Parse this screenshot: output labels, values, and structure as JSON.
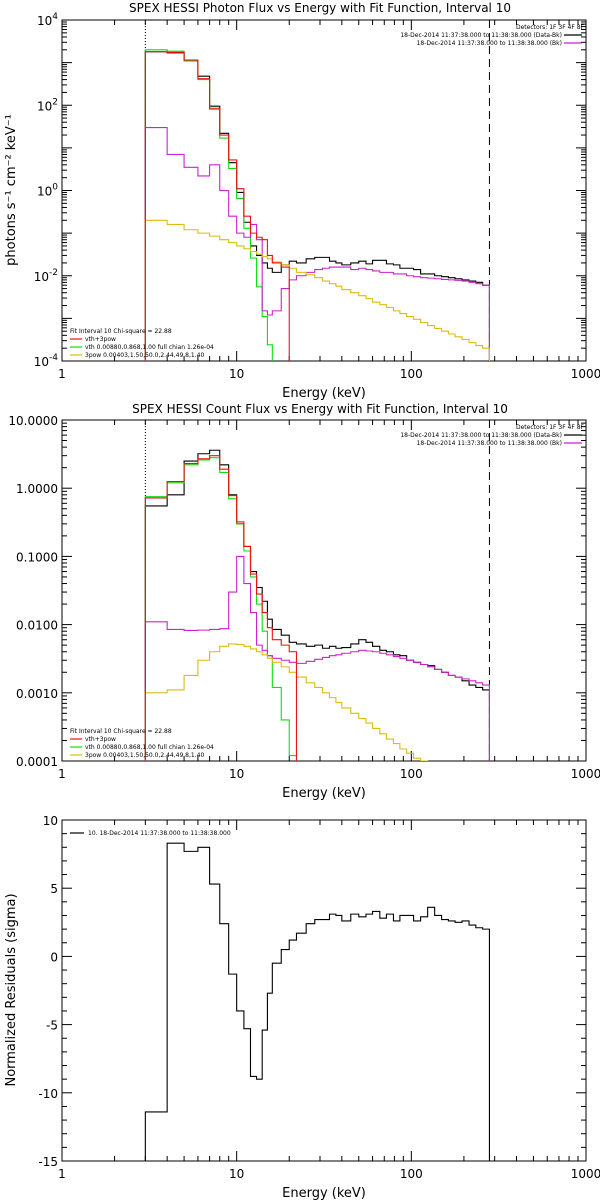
{
  "colors": {
    "black": "#000000",
    "green": "#11dd11",
    "magenta": "#cc22cc",
    "yellow": "#ddbb11",
    "red": "#ee1111",
    "orange": "#ee8800"
  },
  "chart_data": [
    {
      "type": "line",
      "step": true,
      "title": "SPEX HESSI Photon Flux vs Energy with Fit Function, Interval 10",
      "xlabel": "Energy (keV)",
      "ylabel": "photons s⁻¹ cm⁻² keV⁻¹",
      "xscale": "log",
      "yscale": "log",
      "xlim": [
        1,
        1000
      ],
      "ylim": [
        0.0001,
        10000
      ],
      "xticks": [
        {
          "v": 1,
          "label": "1"
        },
        {
          "v": 10,
          "label": "10"
        },
        {
          "v": 100,
          "label": "100"
        },
        {
          "v": 1000,
          "label": "1000"
        }
      ],
      "yticks": [
        {
          "v": 0.0001,
          "b": "10",
          "e": "-4"
        },
        {
          "v": 0.01,
          "b": "10",
          "e": "-2"
        },
        {
          "v": 1,
          "b": "10",
          "e": "0"
        },
        {
          "v": 100,
          "b": "10",
          "e": "2"
        },
        {
          "v": 10000,
          "b": "10",
          "e": "4"
        }
      ],
      "vlines": [
        {
          "x": 3,
          "style": "dotted"
        },
        {
          "x": 280,
          "style": "dashed"
        }
      ],
      "legend_top": {
        "header": "Detectors: 1F 3F 4F 8F",
        "entries": [
          {
            "label": "18-Dec-2014 11:37:38.000 to 11:38:38.000 (Data-Bk)",
            "color": "black"
          },
          {
            "label": "18-Dec-2014 11:37:38.000 to 11:38:38.000 (Bk)",
            "color": "magenta"
          }
        ]
      },
      "legend_bottom": {
        "header": "Fit Interval 10   Chi-square = 22.88",
        "entries": [
          {
            "label": "vth+3pow",
            "color": "red"
          },
          {
            "label": "vth 0.00880,0.868,1.00   full chian 1.26e-04",
            "color": "green"
          },
          {
            "label": "3pow 0.00403,1.50,50.0,2.44,49.8,1.40",
            "color": "yellow"
          }
        ]
      },
      "edges": [
        3.0,
        4.0,
        5.0,
        6.0,
        7.0,
        8.0,
        9.0,
        10.0,
        11.0,
        12.0,
        13.0,
        14.0,
        15.0,
        16.0,
        18.0,
        20.0,
        22.0,
        25.0,
        28.0,
        31.0,
        34.0,
        37.0,
        40.0,
        45.0,
        50.0,
        55.0,
        60.0,
        66.0,
        72.0,
        79.0,
        86.0,
        94.0,
        103.0,
        113.0,
        124.0,
        136.0,
        149.0,
        163.0,
        178.0,
        195.0,
        214.0,
        234.0,
        256.0,
        280.0
      ],
      "series": [
        {
          "color": "black",
          "values": [
            1800,
            1700,
            1100,
            480,
            95,
            22,
            4.5,
            0.9,
            0.18,
            0.05,
            0.03,
            0.02,
            0.015,
            0.012,
            0.018,
            0.022,
            0.02,
            0.025,
            0.027,
            0.027,
            0.022,
            0.02,
            0.018,
            0.02,
            0.022,
            0.019,
            0.023,
            0.023,
            0.019,
            0.018,
            0.015,
            0.015,
            0.014,
            0.011,
            0.011,
            0.01,
            0.0095,
            0.009,
            0.0085,
            0.008,
            0.0075,
            0.007,
            0.006
          ]
        },
        {
          "color": "green",
          "values": [
            2000,
            1850,
            1100,
            400,
            80,
            17,
            3.3,
            0.65,
            0.13,
            0.026,
            0.0055,
            0.0011,
            0.00024,
            5e-05
          ]
        },
        {
          "color": "magenta",
          "values": [
            30,
            7,
            3.5,
            2.2,
            4,
            1,
            0.25,
            0.1,
            0.08,
            0.16,
            0.07,
            0.0015,
            0.0012,
            0.0015,
            0.005,
            0.008,
            0.01,
            0.012,
            0.014,
            0.015,
            0.016,
            0.016,
            0.016,
            0.014,
            0.015,
            0.014,
            0.013,
            0.012,
            0.012,
            0.011,
            0.011,
            0.01,
            0.0095,
            0.009,
            0.0088,
            0.0085,
            0.0082,
            0.008,
            0.0078,
            0.0075,
            0.007,
            0.0065,
            0.006
          ]
        },
        {
          "color": "yellow",
          "values": [
            0.2,
            0.16,
            0.12,
            0.1,
            0.085,
            0.07,
            0.06,
            0.05,
            0.043,
            0.037,
            0.032,
            0.028,
            0.025,
            0.021,
            0.018,
            0.015,
            0.012,
            0.0105,
            0.009,
            0.0075,
            0.0065,
            0.0057,
            0.0047,
            0.004,
            0.0034,
            0.0029,
            0.0024,
            0.0021,
            0.0018,
            0.0015,
            0.0013,
            0.0011,
            0.00095,
            0.0008,
            0.00068,
            0.00058,
            0.0005,
            0.00043,
            0.00037,
            0.00032,
            0.00027,
            0.00023,
            0.0002
          ]
        },
        {
          "color": "red",
          "values": [
            1800,
            1750,
            1150,
            420,
            85,
            20,
            5.2,
            1.1,
            0.25,
            0.1,
            0.08,
            0.07,
            0.03,
            0.02,
            0.016
          ]
        }
      ]
    },
    {
      "type": "line",
      "step": true,
      "title": "SPEX HESSI Count Flux vs Energy with Fit Function, Interval 10",
      "xlabel": "Energy (keV)",
      "ylabel": "",
      "xscale": "log",
      "yscale": "log",
      "xlim": [
        1,
        1000
      ],
      "ylim": [
        0.0001,
        10
      ],
      "xticks": [
        {
          "v": 1,
          "label": "1"
        },
        {
          "v": 10,
          "label": "10"
        },
        {
          "v": 100,
          "label": "100"
        },
        {
          "v": 1000,
          "label": "1000"
        }
      ],
      "yticks": [
        {
          "v": 0.0001,
          "label": "0.0001"
        },
        {
          "v": 0.001,
          "label": "0.0010"
        },
        {
          "v": 0.01,
          "label": "0.0100"
        },
        {
          "v": 0.1,
          "label": "0.1000"
        },
        {
          "v": 1,
          "label": "1.0000"
        },
        {
          "v": 10,
          "label": "10.0000"
        }
      ],
      "vlines": [
        {
          "x": 3,
          "style": "dotted"
        },
        {
          "x": 280,
          "style": "dashed"
        }
      ],
      "legend_top": {
        "header": "Detectors: 1F 3F 4F 8F",
        "entries": [
          {
            "label": "18-Dec-2014 11:37:38.000 to 11:38:38.000 (Data-Bk)",
            "color": "black"
          },
          {
            "label": "18-Dec-2014 11:37:38.000 to 11:38:38.000 (Bk)",
            "color": "magenta"
          }
        ]
      },
      "legend_bottom": {
        "header": "Fit Interval 10   Chi-square = 22.88",
        "entries": [
          {
            "label": "vth+3pow",
            "color": "red"
          },
          {
            "label": "vth 0.00880,0.868,1.00   full chian 1.26e-04",
            "color": "green"
          },
          {
            "label": "3pow 0.00403,1.50,50.0,2.44,49.8,1.40",
            "color": "yellow"
          }
        ]
      },
      "edges": [
        3.0,
        4.0,
        5.0,
        6.0,
        7.0,
        8.0,
        9.0,
        10.0,
        11.0,
        12.0,
        13.0,
        14.0,
        15.0,
        16.0,
        18.0,
        20.0,
        22.0,
        25.0,
        28.0,
        31.0,
        34.0,
        37.0,
        40.0,
        45.0,
        50.0,
        55.0,
        60.0,
        66.0,
        72.0,
        79.0,
        86.0,
        94.0,
        103.0,
        113.0,
        124.0,
        136.0,
        149.0,
        163.0,
        178.0,
        195.0,
        214.0,
        234.0,
        256.0,
        280.0
      ],
      "series": [
        {
          "color": "black",
          "values": [
            0.55,
            0.8,
            2.5,
            3.2,
            3.6,
            2.2,
            0.8,
            0.3,
            0.14,
            0.06,
            0.035,
            0.022,
            0.012,
            0.0085,
            0.007,
            0.0055,
            0.0052,
            0.0048,
            0.005,
            0.0045,
            0.0048,
            0.0045,
            0.0046,
            0.0052,
            0.006,
            0.0055,
            0.0048,
            0.0042,
            0.004,
            0.0036,
            0.0035,
            0.003,
            0.0028,
            0.0026,
            0.0025,
            0.0022,
            0.002,
            0.0018,
            0.0017,
            0.0015,
            0.0013,
            0.0012,
            0.0011
          ]
        },
        {
          "color": "green",
          "values": [
            0.75,
            1.2,
            2.2,
            2.6,
            2.8,
            1.7,
            0.7,
            0.3,
            0.12,
            0.05,
            0.02,
            0.008,
            0.0035,
            0.0012,
            0.0004,
            0.00012
          ]
        },
        {
          "color": "magenta",
          "values": [
            0.011,
            0.0085,
            0.0082,
            0.0083,
            0.0085,
            0.0087,
            0.03,
            0.1,
            0.04,
            0.015,
            0.005,
            0.0042,
            0.0035,
            0.0032,
            0.003,
            0.0028,
            0.0027,
            0.0029,
            0.0031,
            0.0033,
            0.0035,
            0.0036,
            0.0038,
            0.004,
            0.0042,
            0.0041,
            0.004,
            0.0038,
            0.0036,
            0.0034,
            0.0032,
            0.003,
            0.0028,
            0.0026,
            0.0024,
            0.0022,
            0.002,
            0.0018,
            0.0017,
            0.0016,
            0.0015,
            0.0014,
            0.0013
          ]
        },
        {
          "color": "yellow",
          "values": [
            0.001,
            0.0011,
            0.0018,
            0.003,
            0.004,
            0.0048,
            0.0052,
            0.0051,
            0.0048,
            0.0044,
            0.004,
            0.0036,
            0.0032,
            0.0028,
            0.0024,
            0.002,
            0.0017,
            0.0014,
            0.0012,
            0.001,
            0.00085,
            0.00072,
            0.0006,
            0.0005,
            0.00042,
            0.00036,
            0.0003,
            0.00025,
            0.00021,
            0.00018,
            0.00015,
            0.00013,
            0.00011,
            0.0001
          ]
        },
        {
          "color": "red",
          "values": [
            0.72,
            1.25,
            2.3,
            2.7,
            3.0,
            1.9,
            0.78,
            0.32,
            0.14,
            0.055,
            0.028,
            0.015,
            0.009,
            0.006,
            0.005,
            0.004
          ]
        }
      ]
    },
    {
      "type": "line",
      "step": true,
      "title": "",
      "xlabel": "Energy (keV)",
      "ylabel": "Normalized Residuals (sigma)",
      "xscale": "log",
      "yscale": "linear",
      "xlim": [
        1,
        1000
      ],
      "ylim": [
        -15,
        10
      ],
      "xticks": [
        {
          "v": 1,
          "label": "1"
        },
        {
          "v": 10,
          "label": "10"
        },
        {
          "v": 100,
          "label": "100"
        },
        {
          "v": 1000,
          "label": "1000"
        }
      ],
      "yticks": [
        {
          "v": -15,
          "label": "-15"
        },
        {
          "v": -10,
          "label": "-10"
        },
        {
          "v": -5,
          "label": "-5"
        },
        {
          "v": 0,
          "label": "0"
        },
        {
          "v": 5,
          "label": "5"
        },
        {
          "v": 10,
          "label": "10"
        }
      ],
      "vlines": [],
      "legend_top_left": {
        "entries": [
          {
            "label": "10. 18-Dec-2014 11:37:38.000 to 11:38:38.000",
            "color": "black"
          }
        ]
      },
      "edges": [
        3.0,
        4.0,
        5.0,
        6.0,
        7.0,
        8.0,
        9.0,
        10.0,
        11.0,
        12.0,
        13.0,
        14.0,
        15.0,
        16.0,
        18.0,
        20.0,
        22.0,
        25.0,
        28.0,
        31.0,
        34.0,
        37.0,
        40.0,
        45.0,
        50.0,
        55.0,
        60.0,
        66.0,
        72.0,
        79.0,
        86.0,
        94.0,
        103.0,
        113.0,
        124.0,
        136.0,
        149.0,
        163.0,
        178.0,
        195.0,
        214.0,
        234.0,
        256.0,
        280.0
      ],
      "series": [
        {
          "color": "black",
          "values": [
            -11.4,
            8.3,
            7.7,
            8.0,
            5.3,
            2.4,
            -1.3,
            -4.0,
            -5.3,
            -8.8,
            -9.0,
            -5.4,
            -2.7,
            -0.5,
            0.5,
            1.2,
            1.7,
            2.4,
            2.7,
            2.7,
            3.1,
            3.0,
            2.6,
            3.1,
            2.9,
            3.1,
            3.3,
            2.8,
            3.1,
            2.6,
            3.0,
            3.0,
            2.6,
            2.9,
            3.6,
            3.0,
            2.7,
            2.6,
            2.5,
            2.6,
            2.3,
            2.1,
            2.0
          ]
        }
      ]
    }
  ]
}
